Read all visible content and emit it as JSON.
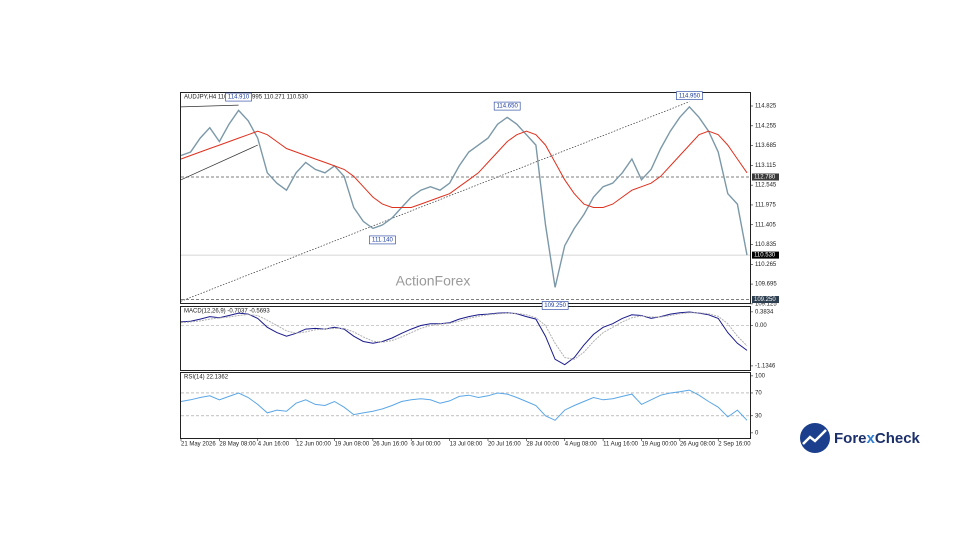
{
  "chart_data": [
    {
      "type": "line",
      "title": "AUDJPY,H4  110.987 110.995 110.271 110.530",
      "watermark": "ActionForex",
      "xlim": [
        0,
        59
      ],
      "ylim": [
        109.15,
        115.2
      ],
      "yticks": [
        114.825,
        114.255,
        113.685,
        113.115,
        112.545,
        111.975,
        111.405,
        110.835,
        110.265,
        109.695,
        109.125
      ],
      "series": [
        {
          "name": "AUDJPY",
          "color": "#7b98a8",
          "values": [
            113.4,
            113.5,
            113.9,
            114.2,
            113.8,
            114.3,
            114.7,
            114.4,
            113.9,
            112.9,
            112.6,
            112.4,
            112.9,
            113.2,
            113.0,
            112.9,
            113.1,
            112.8,
            111.9,
            111.5,
            111.3,
            111.4,
            111.6,
            111.9,
            112.2,
            112.4,
            112.5,
            112.4,
            112.6,
            113.1,
            113.5,
            113.7,
            113.9,
            114.3,
            114.5,
            114.3,
            114.0,
            113.7,
            111.4,
            109.6,
            110.8,
            111.3,
            111.7,
            112.2,
            112.5,
            112.6,
            112.9,
            113.3,
            112.7,
            113.0,
            113.6,
            114.1,
            114.5,
            114.8,
            114.5,
            114.1,
            113.5,
            112.3,
            112.0,
            110.53
          ]
        },
        {
          "name": "MA",
          "color": "#e0301e",
          "values": [
            113.3,
            113.4,
            113.5,
            113.6,
            113.7,
            113.8,
            113.9,
            114.0,
            114.1,
            114.0,
            113.8,
            113.6,
            113.5,
            113.4,
            113.3,
            113.2,
            113.1,
            113.0,
            112.8,
            112.5,
            112.2,
            112.0,
            111.9,
            111.9,
            111.9,
            112.0,
            112.1,
            112.2,
            112.3,
            112.5,
            112.7,
            112.9,
            113.2,
            113.5,
            113.8,
            114.0,
            114.1,
            114.0,
            113.7,
            113.2,
            112.7,
            112.3,
            112.0,
            111.9,
            111.9,
            112.0,
            112.2,
            112.4,
            112.5,
            112.6,
            112.8,
            113.1,
            113.4,
            113.7,
            114.0,
            114.1,
            114.0,
            113.7,
            113.3,
            112.9
          ]
        }
      ],
      "annotations": [
        {
          "label": "114.910",
          "index": 6,
          "value": 114.91,
          "side": "above"
        },
        {
          "label": "111.140",
          "index": 21,
          "value": 111.14,
          "side": "below"
        },
        {
          "label": "114.650",
          "index": 34,
          "value": 114.65,
          "side": "above"
        },
        {
          "label": "109.250",
          "index": 39,
          "value": 109.25,
          "side": "below"
        },
        {
          "label": "114.950",
          "index": 53,
          "value": 114.95,
          "side": "above"
        }
      ],
      "hlines": [
        {
          "value": 112.78,
          "label": "112.780",
          "style": "dashed",
          "tag_color": "#3a3a3a"
        },
        {
          "value": 110.53,
          "label": "110.530",
          "style": "solid",
          "tag_color": "#000000"
        },
        {
          "value": 109.25,
          "label": "109.250",
          "style": "dashed",
          "tag_color": "#2c3e50"
        }
      ],
      "trendlines": [
        {
          "x": [
            0,
            53
          ],
          "y": [
            109.2,
            114.95
          ],
          "style": "dotted"
        },
        {
          "x": [
            0,
            8
          ],
          "y": [
            112.7,
            113.7
          ],
          "style": "solid"
        },
        {
          "x": [
            0,
            6
          ],
          "y": [
            114.8,
            114.85
          ],
          "style": "solid"
        }
      ]
    },
    {
      "type": "line",
      "title": "MACD(12,26,9) -0.7037 -0.5693",
      "xlim": [
        0,
        59
      ],
      "ylim": [
        -1.25,
        0.52
      ],
      "yticks": [
        0.3834,
        {
          "value": 0,
          "label": "0.00"
        },
        -1.1346
      ],
      "levels": [
        0
      ],
      "series": [
        {
          "name": "MACD",
          "color": "#1a1a8c",
          "values": [
            0.1,
            0.12,
            0.18,
            0.25,
            0.22,
            0.28,
            0.35,
            0.32,
            0.2,
            -0.05,
            -0.2,
            -0.3,
            -0.22,
            -0.1,
            -0.08,
            -0.1,
            -0.05,
            -0.1,
            -0.3,
            -0.45,
            -0.5,
            -0.45,
            -0.35,
            -0.22,
            -0.1,
            0.0,
            0.05,
            0.05,
            0.08,
            0.18,
            0.25,
            0.3,
            0.32,
            0.35,
            0.36,
            0.33,
            0.25,
            0.18,
            -0.3,
            -0.95,
            -1.1,
            -0.9,
            -0.55,
            -0.25,
            -0.05,
            0.05,
            0.2,
            0.3,
            0.28,
            0.2,
            0.25,
            0.32,
            0.36,
            0.38,
            0.35,
            0.3,
            0.2,
            -0.2,
            -0.5,
            -0.7
          ]
        },
        {
          "name": "Signal",
          "color": "#b0b0b0",
          "values": [
            0.08,
            0.1,
            0.13,
            0.18,
            0.21,
            0.24,
            0.28,
            0.31,
            0.28,
            0.15,
            0.0,
            -0.15,
            -0.22,
            -0.18,
            -0.12,
            -0.1,
            -0.08,
            -0.08,
            -0.18,
            -0.32,
            -0.44,
            -0.47,
            -0.42,
            -0.32,
            -0.2,
            -0.08,
            0.0,
            0.04,
            0.06,
            0.12,
            0.2,
            0.26,
            0.3,
            0.33,
            0.35,
            0.34,
            0.3,
            0.22,
            0.0,
            -0.5,
            -0.9,
            -0.95,
            -0.75,
            -0.45,
            -0.2,
            -0.05,
            0.1,
            0.22,
            0.27,
            0.24,
            0.24,
            0.28,
            0.33,
            0.36,
            0.36,
            0.33,
            0.26,
            0.05,
            -0.3,
            -0.57
          ]
        }
      ]
    },
    {
      "type": "line",
      "title": "RSI(14) 22.1362",
      "xlim": [
        0,
        59
      ],
      "ylim": [
        -9,
        105
      ],
      "yticks": [
        100,
        70,
        30,
        0
      ],
      "levels": [
        70,
        30
      ],
      "xticks": [
        {
          "value": 0,
          "label": "21 May 2026"
        },
        {
          "value": 4,
          "label": "28 May 08:00"
        },
        {
          "value": 8,
          "label": "4 Jun 16:00"
        },
        {
          "value": 12,
          "label": "12 Jun 00:00"
        },
        {
          "value": 16,
          "label": "19 Jun 08:00"
        },
        {
          "value": 20,
          "label": "26 Jun 16:00"
        },
        {
          "value": 24,
          "label": "6 Jul 00:00"
        },
        {
          "value": 28,
          "label": "13 Jul 08:00"
        },
        {
          "value": 32,
          "label": "20 Jul 16:00"
        },
        {
          "value": 36,
          "label": "28 Jul 00:00"
        },
        {
          "value": 40,
          "label": "4 Aug 08:00"
        },
        {
          "value": 44,
          "label": "11 Aug 16:00"
        },
        {
          "value": 48,
          "label": "19 Aug 00:00"
        },
        {
          "value": 52,
          "label": "26 Aug 08:00"
        },
        {
          "value": 56,
          "label": "2 Sep 16:00"
        }
      ],
      "series": [
        {
          "name": "RSI",
          "color": "#5aa6e6",
          "values": [
            55,
            58,
            62,
            65,
            58,
            64,
            70,
            62,
            50,
            35,
            40,
            38,
            52,
            58,
            50,
            48,
            55,
            45,
            32,
            35,
            38,
            42,
            48,
            55,
            58,
            60,
            58,
            52,
            56,
            64,
            66,
            62,
            65,
            70,
            68,
            62,
            55,
            48,
            30,
            22,
            40,
            48,
            55,
            62,
            58,
            60,
            64,
            68,
            50,
            58,
            66,
            70,
            72,
            75,
            66,
            55,
            45,
            28,
            40,
            22
          ]
        }
      ]
    }
  ],
  "brand": [
    "Fore",
    "x",
    "Check"
  ]
}
